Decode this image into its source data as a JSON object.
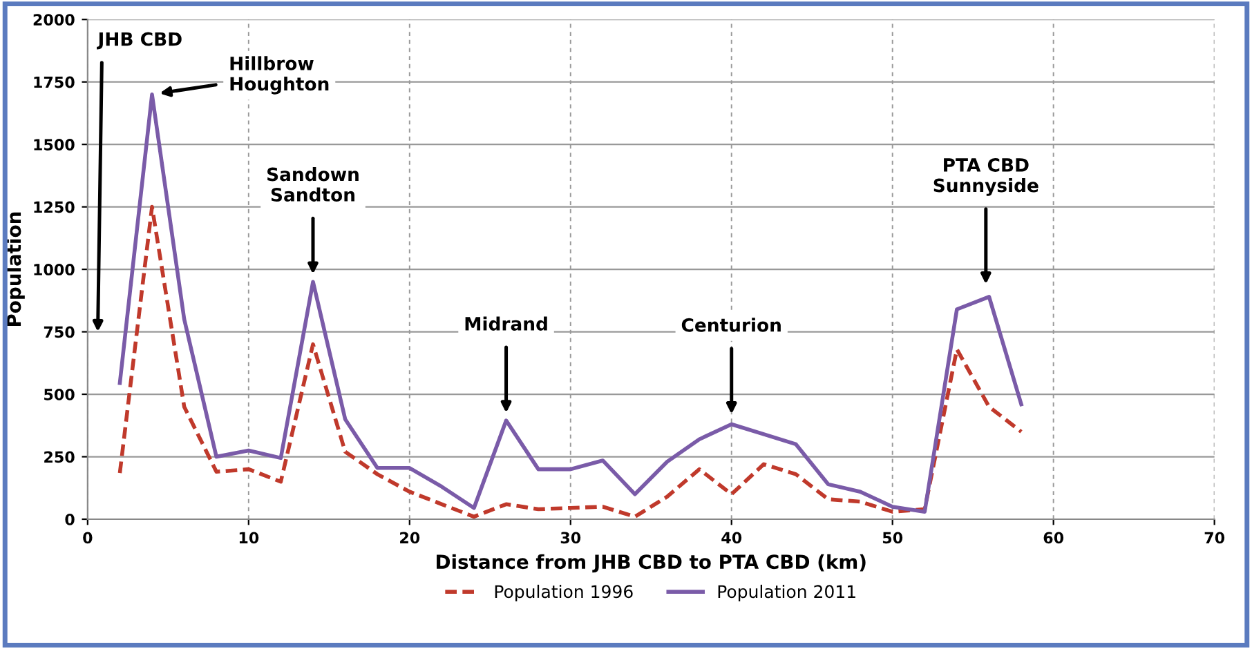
{
  "chart_data": {
    "type": "line",
    "xlabel": "Distance from JHB CBD to PTA CBD (km)",
    "ylabel": "Population",
    "x": [
      2,
      4,
      6,
      8,
      10,
      12,
      14,
      16,
      18,
      20,
      22,
      24,
      26,
      28,
      30,
      32,
      34,
      36,
      38,
      40,
      42,
      44,
      46,
      48,
      50,
      52,
      54,
      56,
      58
    ],
    "series": [
      {
        "name": "Population 1996",
        "color": "#c0392b",
        "line_style": "dashed",
        "values": [
          185,
          1250,
          450,
          190,
          200,
          150,
          700,
          270,
          180,
          110,
          60,
          10,
          60,
          40,
          45,
          50,
          10,
          90,
          200,
          100,
          220,
          180,
          80,
          70,
          30,
          40,
          680,
          450,
          350
        ]
      },
      {
        "name": "Population 2011",
        "color": "#7a5ba8",
        "line_style": "solid",
        "values": [
          545,
          1700,
          800,
          250,
          275,
          245,
          950,
          400,
          205,
          205,
          130,
          45,
          395,
          200,
          200,
          235,
          100,
          230,
          320,
          380,
          340,
          300,
          140,
          110,
          50,
          30,
          840,
          890,
          460
        ]
      }
    ],
    "xlim": [
      0,
      70
    ],
    "xticks": [
      0,
      10,
      20,
      30,
      40,
      50,
      60,
      70
    ],
    "ylim": [
      0,
      2000
    ],
    "yticks": [
      0,
      250,
      500,
      750,
      1000,
      1250,
      1500,
      1750,
      2000
    ],
    "grid": true,
    "legend": "bottom",
    "marker": "none",
    "annotations": [
      "JHB CBD",
      {
        "text": "Hillbrow\nHoughton",
        "x": 4,
        "y": 1700
      },
      {
        "text": "Sandown\nSandton",
        "x": 14,
        "y": 950
      },
      {
        "text": "Midrand",
        "x": 26,
        "y": 395
      },
      {
        "text": "Centurion",
        "x": 40,
        "y": 390
      },
      {
        "text": "PTA CBD\nSunnyside",
        "x": 55.8,
        "y": 910
      }
    ]
  }
}
